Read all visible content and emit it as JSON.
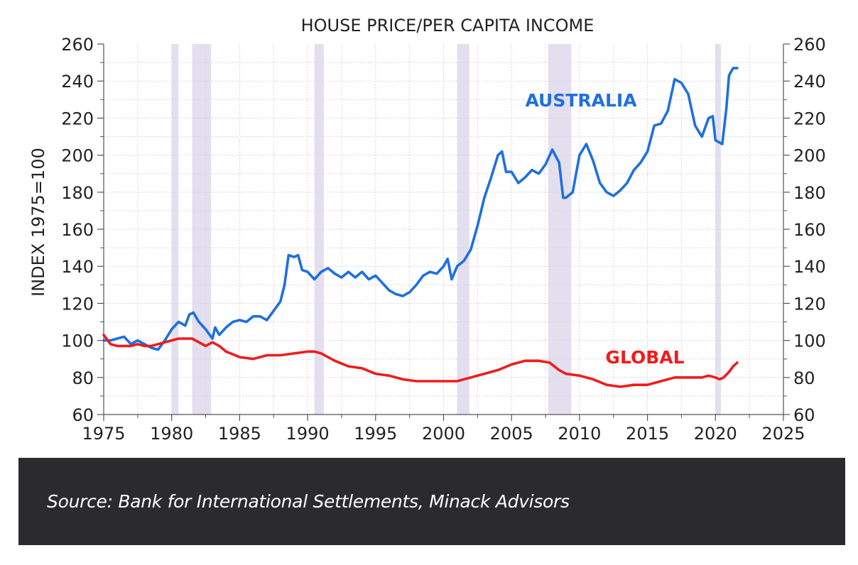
{
  "chart_data": {
    "type": "line",
    "title": "HOUSE PRICE/PER CAPITA INCOME",
    "ylabel": "INDEX 1975=100",
    "xlabel": "",
    "xlim": [
      1975,
      2025
    ],
    "ylim": [
      60,
      260
    ],
    "x_ticks": [
      "1975",
      "1980",
      "1985",
      "1990",
      "1995",
      "2000",
      "2005",
      "2010",
      "2015",
      "2020",
      "2025"
    ],
    "y_ticks": [
      "60",
      "80",
      "100",
      "120",
      "140",
      "160",
      "180",
      "200",
      "220",
      "240",
      "260"
    ],
    "grid": true,
    "recession_bands": [
      [
        1980.0,
        1980.5
      ],
      [
        1981.5,
        1982.9
      ],
      [
        1990.5,
        1991.2
      ],
      [
        2001.0,
        2001.9
      ],
      [
        2007.7,
        2009.4
      ],
      [
        2020.0,
        2020.4
      ]
    ],
    "series": [
      {
        "name": "AUSTRALIA",
        "color": "#1f6fe0",
        "x": [
          1975.0,
          1975.5,
          1976.0,
          1976.5,
          1977.0,
          1977.5,
          1978.0,
          1978.5,
          1979.0,
          1979.5,
          1980.0,
          1980.5,
          1981.0,
          1981.3,
          1981.6,
          1982.0,
          1982.5,
          1983.0,
          1983.2,
          1983.5,
          1984.0,
          1984.5,
          1985.0,
          1985.5,
          1986.0,
          1986.5,
          1987.0,
          1987.5,
          1988.0,
          1988.3,
          1988.6,
          1989.0,
          1989.3,
          1989.6,
          1990.0,
          1990.5,
          1991.0,
          1991.5,
          1992.0,
          1992.5,
          1993.0,
          1993.5,
          1994.0,
          1994.5,
          1995.0,
          1995.5,
          1996.0,
          1996.5,
          1997.0,
          1997.5,
          1998.0,
          1998.5,
          1999.0,
          1999.5,
          2000.0,
          2000.3,
          2000.6,
          2001.0,
          2001.5,
          2002.0,
          2002.5,
          2003.0,
          2003.5,
          2004.0,
          2004.3,
          2004.6,
          2005.0,
          2005.5,
          2006.0,
          2006.5,
          2007.0,
          2007.5,
          2008.0,
          2008.5,
          2008.8,
          2009.0,
          2009.5,
          2010.0,
          2010.5,
          2011.0,
          2011.5,
          2012.0,
          2012.5,
          2013.0,
          2013.5,
          2014.0,
          2014.5,
          2015.0,
          2015.5,
          2016.0,
          2016.5,
          2017.0,
          2017.5,
          2018.0,
          2018.5,
          2019.0,
          2019.5,
          2019.8,
          2020.0,
          2020.5,
          2020.8,
          2021.0,
          2021.3,
          2021.6
        ],
        "values": [
          100,
          100,
          101,
          102,
          98,
          100,
          98,
          96,
          95,
          100,
          106,
          110,
          108,
          114,
          115,
          110,
          106,
          101,
          107,
          103,
          107,
          110,
          111,
          110,
          113,
          113,
          111,
          116,
          121,
          130,
          146,
          145,
          146,
          138,
          137,
          133,
          137,
          139,
          136,
          134,
          137,
          134,
          137,
          133,
          135,
          131,
          127,
          125,
          124,
          126,
          130,
          135,
          137,
          136,
          140,
          144,
          133,
          140,
          143,
          149,
          162,
          177,
          188,
          200,
          202,
          191,
          191,
          185,
          188,
          192,
          190,
          195,
          203,
          196,
          177,
          177,
          180,
          200,
          206,
          197,
          185,
          180,
          178,
          181,
          185,
          192,
          196,
          202,
          216,
          217,
          224,
          241,
          239,
          233,
          216,
          210,
          220,
          221,
          208,
          206,
          225,
          243,
          247,
          247
        ]
      },
      {
        "name": "GLOBAL",
        "color": "#ee1c1c",
        "x": [
          1975.0,
          1975.5,
          1976.0,
          1976.5,
          1977.0,
          1977.5,
          1978.0,
          1978.5,
          1979.0,
          1979.5,
          1980.0,
          1980.5,
          1981.0,
          1981.5,
          1982.0,
          1982.5,
          1983.0,
          1983.5,
          1984.0,
          1985.0,
          1986.0,
          1987.0,
          1988.0,
          1989.0,
          1990.0,
          1990.5,
          1991.0,
          1992.0,
          1993.0,
          1994.0,
          1995.0,
          1996.0,
          1997.0,
          1998.0,
          1999.0,
          2000.0,
          2001.0,
          2002.0,
          2003.0,
          2004.0,
          2005.0,
          2006.0,
          2007.0,
          2007.8,
          2008.5,
          2009.0,
          2010.0,
          2011.0,
          2012.0,
          2013.0,
          2014.0,
          2015.0,
          2016.0,
          2017.0,
          2018.0,
          2019.0,
          2019.5,
          2020.0,
          2020.3,
          2020.6,
          2021.0,
          2021.3,
          2021.6
        ],
        "values": [
          103,
          98,
          97,
          97,
          97,
          98,
          97,
          97,
          98,
          99,
          100,
          101,
          101,
          101,
          99,
          97,
          99,
          97,
          94,
          91,
          90,
          92,
          92,
          93,
          94,
          94,
          93,
          89,
          86,
          85,
          82,
          81,
          79,
          78,
          78,
          78,
          78,
          80,
          82,
          84,
          87,
          89,
          89,
          88,
          84,
          82,
          81,
          79,
          76,
          75,
          76,
          76,
          78,
          80,
          80,
          80,
          81,
          80,
          79,
          80,
          83,
          86,
          88
        ]
      }
    ],
    "annotations": [
      {
        "text": "AUSTRALIA",
        "color": "#1f6fe0"
      },
      {
        "text": "GLOBAL",
        "color": "#ee1c1c"
      }
    ]
  },
  "caption": {
    "source": "Source: Bank for International Settlements, Minack Advisors"
  }
}
